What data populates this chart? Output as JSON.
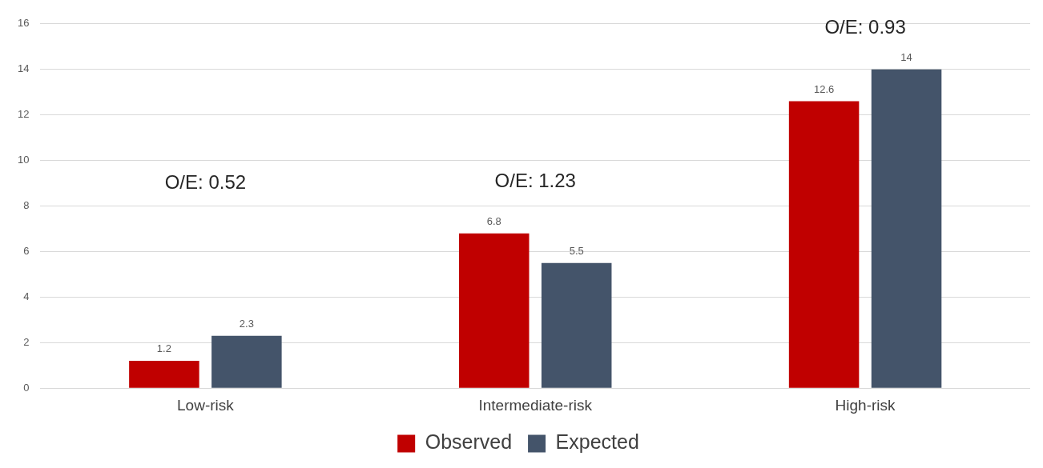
{
  "chart_data": {
    "type": "bar",
    "categories": [
      "Low-risk",
      "Intermediate-risk",
      "High-risk"
    ],
    "series": [
      {
        "name": "Observed",
        "color": "#c00000",
        "values": [
          1.2,
          6.8,
          12.6
        ]
      },
      {
        "name": "Expected",
        "color": "#44546a",
        "values": [
          2.3,
          5.5,
          14
        ]
      }
    ],
    "ylim": [
      0,
      16
    ],
    "yticks": [
      0,
      2,
      4,
      6,
      8,
      10,
      12,
      14,
      16
    ],
    "grid": "y",
    "legend": "bottom",
    "data_labels": true,
    "annotations": [
      "O/E: 0.52",
      "O/E: 1.23",
      "O/E: 0.93"
    ]
  }
}
